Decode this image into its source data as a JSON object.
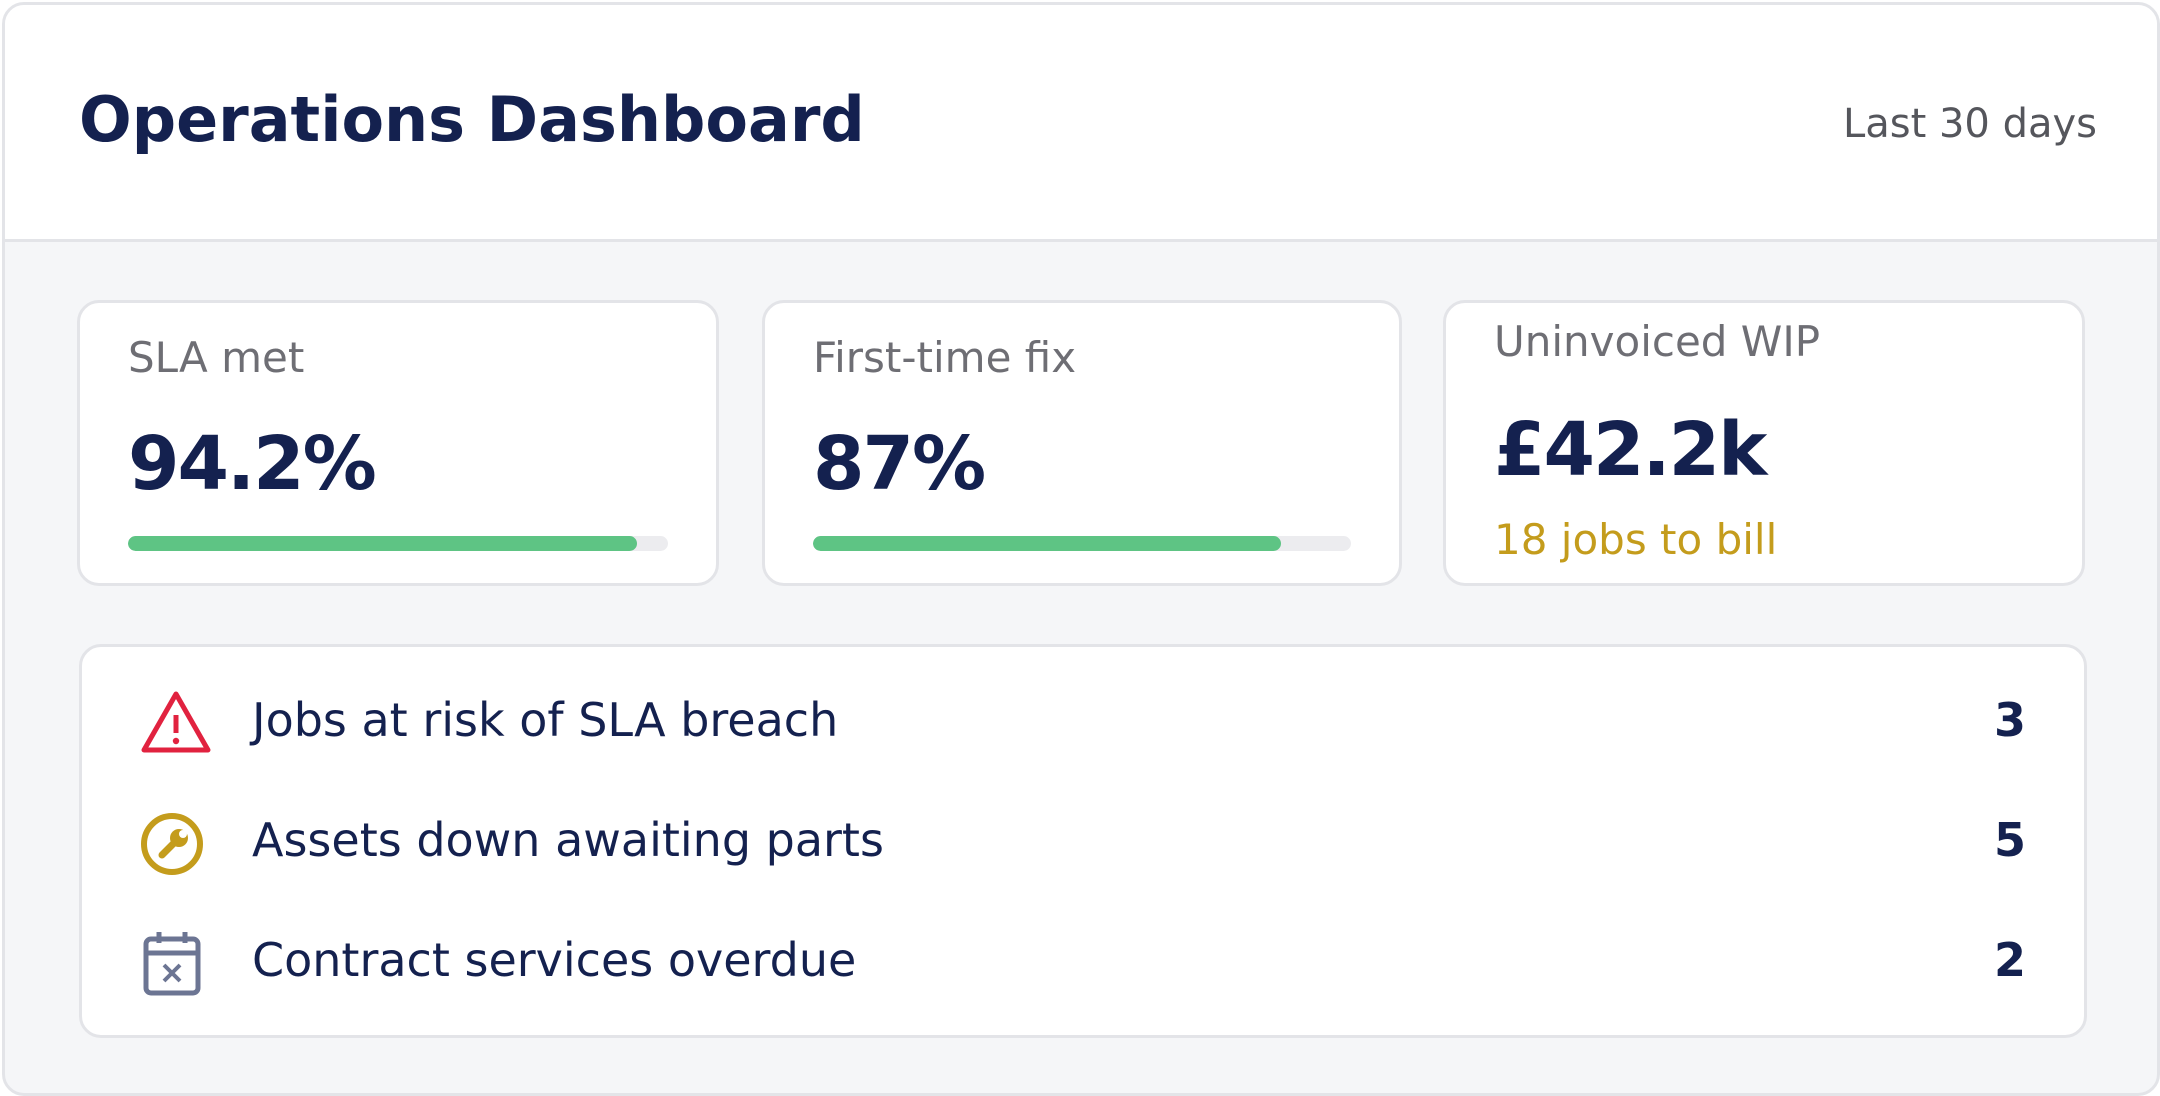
{
  "header": {
    "title": "Operations Dashboard",
    "range": "Last 30 days"
  },
  "kpis": [
    {
      "label": "SLA met",
      "value": 94.2,
      "value_label": "94.2%"
    },
    {
      "label": "First-time fix",
      "value": 87,
      "value_label": "87%"
    },
    {
      "label": "Uninvoiced WIP",
      "value_label": "£42.2k",
      "note": "18 jobs to bill"
    }
  ],
  "alerts": [
    {
      "label": "Jobs at risk of SLA breach",
      "count": 3
    },
    {
      "label": "Assets down awaiting parts",
      "count": 5
    },
    {
      "label": "Contract services overdue",
      "count": 2
    }
  ]
}
